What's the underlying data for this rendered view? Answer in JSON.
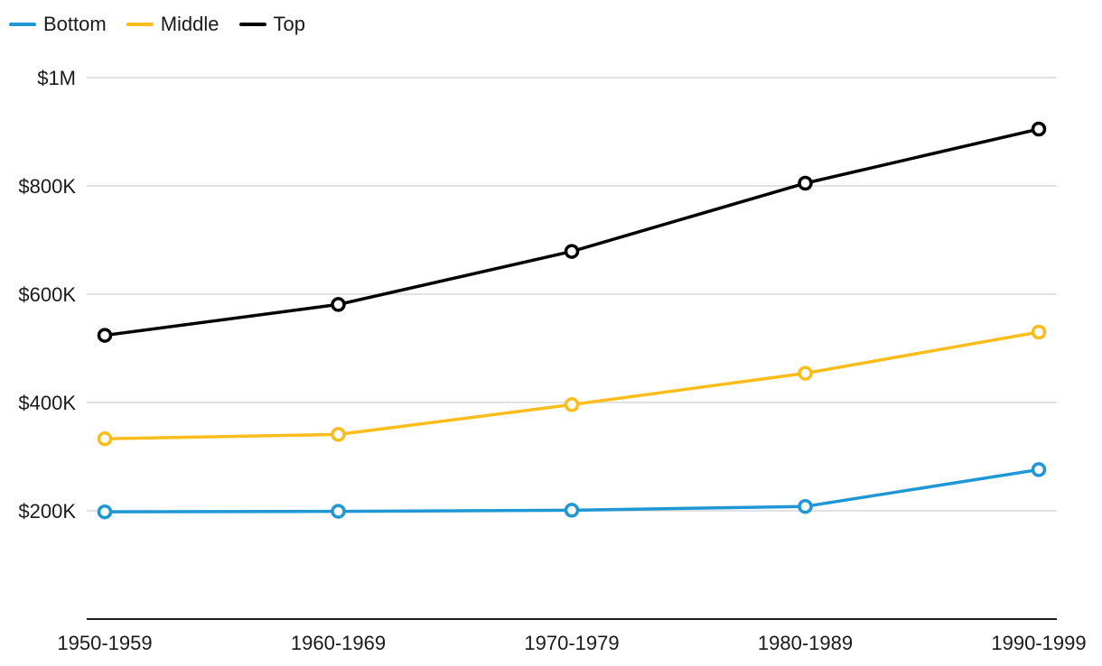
{
  "chart_data": {
    "type": "line",
    "title": "",
    "xlabel": "",
    "ylabel": "",
    "categories": [
      "1950-1959",
      "1960-1969",
      "1970-1979",
      "1980-1989",
      "1990-1999"
    ],
    "ylim": [
      0,
      1000000
    ],
    "y_ticks": [
      {
        "value": 200000,
        "label": "$200K"
      },
      {
        "value": 400000,
        "label": "$400K"
      },
      {
        "value": 600000,
        "label": "$600K"
      },
      {
        "value": 800000,
        "label": "$800K"
      },
      {
        "value": 1000000,
        "label": "$1M"
      }
    ],
    "grid": true,
    "legend_position": "top-left",
    "series": [
      {
        "name": "Bottom",
        "color": "#1f97d4",
        "values": [
          198000,
          199000,
          201000,
          208000,
          276000
        ]
      },
      {
        "name": "Middle",
        "color": "#fbbd1b",
        "values": [
          333000,
          341000,
          396000,
          454000,
          530000
        ]
      },
      {
        "name": "Top",
        "color": "#000000",
        "values": [
          524000,
          581000,
          679000,
          805000,
          905000
        ]
      }
    ]
  }
}
